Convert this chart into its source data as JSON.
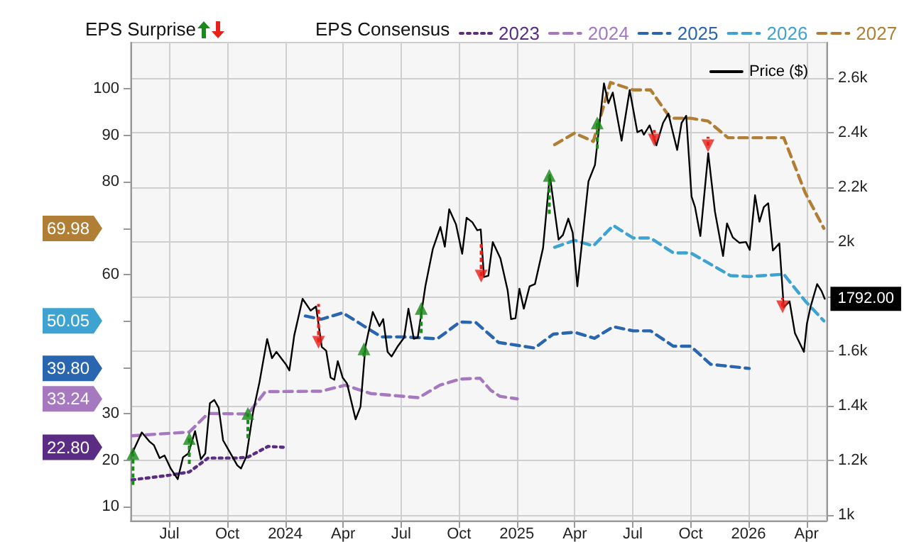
{
  "chart_data": {
    "type": "line",
    "legend_title": "EPS Consensus",
    "annotations": [
      "EPS Surprise",
      "22.80",
      "33.24",
      "39.80",
      "50.05",
      "69.98"
    ],
    "xlim": [
      2023.333,
      2026.337
    ],
    "xticks": [
      {
        "value": 2023.5,
        "label": "Jul"
      },
      {
        "value": 2023.75,
        "label": "Oct"
      },
      {
        "value": 2024,
        "label": "2024"
      },
      {
        "value": 2024.25,
        "label": "Apr"
      },
      {
        "value": 2024.5,
        "label": "Jul"
      },
      {
        "value": 2024.75,
        "label": "Oct"
      },
      {
        "value": 2025,
        "label": "2025"
      },
      {
        "value": 2025.25,
        "label": "Apr"
      },
      {
        "value": 2025.5,
        "label": "Jul"
      },
      {
        "value": 2025.75,
        "label": "Oct"
      },
      {
        "value": 2026,
        "label": "2026"
      },
      {
        "value": 2026.25,
        "label": "Apr"
      }
    ],
    "ylim": [
      7,
      110
    ],
    "yticks": [
      10,
      20,
      30,
      {
        "value": 40,
        "label": null
      },
      {
        "value": 50,
        "label": null
      },
      60,
      {
        "value": 70,
        "label": null
      },
      80,
      90,
      100
    ],
    "y2lim": [
      980,
      2730
    ],
    "y2ticks": [
      {
        "value": 1000,
        "label": "1k"
      },
      {
        "value": 1200,
        "label": "1.2k"
      },
      {
        "value": 1400,
        "label": "1.4k"
      },
      {
        "value": 1600,
        "label": "1.6k"
      },
      {
        "value": 1800,
        "label": null
      },
      {
        "value": 2000,
        "label": "2k"
      },
      {
        "value": 2200,
        "label": "2.2k"
      },
      {
        "value": 2400,
        "label": "2.4k"
      },
      {
        "value": 2600,
        "label": "2.6k"
      }
    ],
    "grid": true,
    "legend": "top",
    "series": [
      {
        "name": "2023",
        "color": "#5b2c83",
        "line_style": "dotted",
        "x": [
          2023.339,
          2023.5,
          2023.586,
          2023.667,
          2023.793,
          2023.839,
          2023.926,
          2024.001
        ],
        "values": [
          15.8,
          16.8,
          17.5,
          20.5,
          20.5,
          20.7,
          23.0,
          22.8
        ]
      },
      {
        "name": "2024",
        "color": "#a678c0",
        "line_style": "dashed",
        "x": [
          2023.339,
          2023.586,
          2023.667,
          2023.839,
          2023.914,
          2024.156,
          2024.259,
          2024.369,
          2024.576,
          2024.668,
          2024.754,
          2024.841,
          2024.887,
          2024.927,
          2025.002
        ],
        "values": [
          25.3,
          26.1,
          30.1,
          30.0,
          34.8,
          34.9,
          36.2,
          34.4,
          33.5,
          36.2,
          37.5,
          37.7,
          35.1,
          33.8,
          33.24
        ]
      },
      {
        "name": "2025",
        "color": "#2a66b0",
        "line_style": "dashed",
        "x": [
          2024.087,
          2024.156,
          2024.248,
          2024.415,
          2024.507,
          2024.657,
          2024.754,
          2024.823,
          2024.921,
          2025.077,
          2025.157,
          2025.249,
          2025.335,
          2025.416,
          2025.502,
          2025.577,
          2025.675,
          2025.75,
          2025.836,
          2026.003
        ],
        "values": [
          51.1,
          50.4,
          51.8,
          46.6,
          46.6,
          46.2,
          49.8,
          49.7,
          45.4,
          44.2,
          47.2,
          47.6,
          46.3,
          48.8,
          47.9,
          47.9,
          44.6,
          44.6,
          40.7,
          39.8
        ]
      },
      {
        "name": "2026",
        "color": "#3ea3d0",
        "line_style": "dashed",
        "x": [
          2025.163,
          2025.249,
          2025.33,
          2025.416,
          2025.502,
          2025.577,
          2025.675,
          2025.75,
          2025.922,
          2026.003,
          2026.152,
          2026.245,
          2026.325
        ],
        "values": [
          65.9,
          67.4,
          66.2,
          70.6,
          67.9,
          67.9,
          64.7,
          64.7,
          59.8,
          59.6,
          60.1,
          54.3,
          50.05
        ]
      },
      {
        "name": "2027",
        "color": "#b07f35",
        "line_style": "dashed",
        "x": [
          2025.163,
          2025.249,
          2025.33,
          2025.404,
          2025.502,
          2025.577,
          2025.663,
          2025.75,
          2025.825,
          2025.911,
          2026.152,
          2026.245,
          2026.325
        ],
        "values": [
          88.0,
          90.5,
          88.7,
          101.4,
          99.8,
          99.8,
          93.7,
          93.7,
          93.1,
          89.5,
          89.5,
          77.6,
          69.98
        ]
      },
      {
        "name": "Price ($)",
        "color": "#000000",
        "line_style": "solid",
        "axis": "y2",
        "x": [
          2023.339,
          2023.381,
          2023.414,
          2023.433,
          2023.458,
          2023.479,
          2023.506,
          2023.536,
          2023.559,
          2023.582,
          2023.611,
          2023.636,
          2023.655,
          2023.675,
          2023.694,
          2023.713,
          2023.732,
          2023.761,
          2023.793,
          2023.809,
          2023.832,
          2023.861,
          2023.889,
          2023.922,
          2023.943,
          2023.962,
          2024.004,
          2024.018,
          2024.039,
          2024.075,
          2024.11,
          2024.133,
          2024.158,
          2024.177,
          2024.196,
          2024.212,
          2024.227,
          2024.248,
          2024.267,
          2024.304,
          2024.325,
          2024.346,
          2024.378,
          2024.407,
          2024.423,
          2024.442,
          2024.459,
          2024.484,
          2024.513,
          2024.532,
          2024.555,
          2024.572,
          2024.605,
          2024.637,
          2024.67,
          2024.689,
          2024.708,
          2024.737,
          2024.764,
          2024.783,
          2024.808,
          2024.829,
          2024.844,
          2024.858,
          2024.877,
          2024.896,
          2024.929,
          2024.96,
          2024.975,
          2024.994,
          2025.011,
          2025.03,
          2025.055,
          2025.078,
          2025.113,
          2025.142,
          2025.18,
          2025.199,
          2025.222,
          2025.241,
          2025.261,
          2025.309,
          2025.337,
          2025.376,
          2025.395,
          2025.414,
          2025.452,
          2025.487,
          2025.52,
          2025.539,
          2025.548,
          2025.573,
          2025.602,
          2025.631,
          2025.654,
          2025.673,
          2025.692,
          2025.711,
          2025.731,
          2025.754,
          2025.769,
          2025.792,
          2025.826,
          2025.855,
          2025.89,
          2025.907,
          2025.932,
          2025.961,
          2025.989,
          2026.005,
          2026.028,
          2026.047,
          2026.066,
          2026.085,
          2026.105,
          2026.133,
          2026.152,
          2026.177,
          2026.2,
          2026.239,
          2026.252,
          2026.268,
          2026.296,
          2026.315,
          2026.329
        ],
        "values": [
          1226,
          1303,
          1270,
          1257,
          1209,
          1219,
          1171,
          1132,
          1212,
          1226,
          1308,
          1205,
          1226,
          1410,
          1422,
          1393,
          1274,
          1231,
          1183,
          1171,
          1214,
          1376,
          1487,
          1645,
          1575,
          1598,
          1551,
          1530,
          1658,
          1792,
          1749,
          1764,
          1616,
          1602,
          1504,
          1496,
          1564,
          1504,
          1482,
          1351,
          1397,
          1616,
          1744,
          1692,
          1718,
          1598,
          1581,
          1616,
          1650,
          1756,
          1646,
          1650,
          1838,
          1974,
          2055,
          1983,
          2120,
          2065,
          1957,
          2089,
          2072,
          2043,
          2046,
          1872,
          1877,
          2000,
          1940,
          1824,
          1718,
          1721,
          1829,
          1756,
          1838,
          1846,
          1978,
          2245,
          2009,
          2026,
          2086,
          2034,
          1838,
          2222,
          2282,
          2581,
          2508,
          2547,
          2371,
          2556,
          2402,
          2410,
          2393,
          2427,
          2354,
          2436,
          2470,
          2402,
          2337,
          2436,
          2462,
          2166,
          2128,
          2022,
          2325,
          2111,
          1949,
          2068,
          2017,
          1997,
          2000,
          1971,
          2171,
          2074,
          2128,
          2142,
          1969,
          1995,
          1761,
          1783,
          1667,
          1598,
          1701,
          1764,
          1846,
          1821,
          1792
        ],
        "value_labels": [
          null,
          null,
          null,
          null,
          null,
          null,
          null,
          null,
          null,
          null,
          null,
          null,
          null,
          null,
          null,
          null,
          null,
          null,
          null,
          null,
          null,
          null,
          null,
          null,
          null,
          null,
          null,
          null,
          null,
          null,
          null,
          null,
          null,
          null,
          null,
          null,
          null,
          null,
          null,
          null,
          null,
          null,
          null,
          null,
          null,
          null,
          null,
          null,
          null,
          null,
          null,
          null,
          null,
          null,
          null,
          null,
          null,
          null,
          null,
          null,
          null,
          null,
          null,
          null,
          null,
          null,
          null,
          null,
          null,
          null,
          null,
          null,
          null,
          null,
          null,
          null,
          null,
          null,
          null,
          null,
          null,
          null,
          null,
          null,
          null,
          null,
          null,
          null,
          null,
          null,
          null,
          null,
          null,
          null,
          null,
          null,
          null,
          null,
          null,
          null,
          null,
          null,
          null,
          null,
          null,
          null,
          null,
          null,
          null,
          null,
          null,
          null,
          null,
          null,
          null,
          null,
          null,
          null,
          null,
          null,
          null,
          null,
          null,
          null,
          "1792.00"
        ]
      },
      {
        "type": "scatter",
        "color": "#1a8a1a",
        "axis": "y2",
        "marker": "triangle",
        "x": [
          2023.343,
          2023.586,
          2023.839,
          2024.34,
          2024.587,
          2025.14,
          2025.347
        ],
        "values": [
          1226,
          1281,
          1373,
          1609,
          1757,
          2244,
          2436
        ],
        "errors": [
          [
            1111,
            1226
          ],
          [
            1188,
            1281
          ],
          [
            1282,
            1373
          ],
          [
            1581,
            1609
          ],
          [
            1667,
            1757
          ],
          [
            2103,
            2244
          ],
          [
            2342,
            2436
          ]
        ]
      },
      {
        "type": "scatter",
        "color": "#e8201a",
        "axis": "y2",
        "marker": "triangle",
        "x": [
          2024.144,
          2024.846,
          2025.593,
          2025.825,
          2026.147
        ],
        "values": [
          1633,
          1875,
          2373,
          2352,
          1763
        ],
        "errors": [
          [
            1633,
            1773
          ],
          [
            1875,
            1992
          ],
          [
            2373,
            2410
          ],
          [
            2352,
            2385
          ],
          [
            1763,
            1795
          ]
        ]
      }
    ]
  }
}
